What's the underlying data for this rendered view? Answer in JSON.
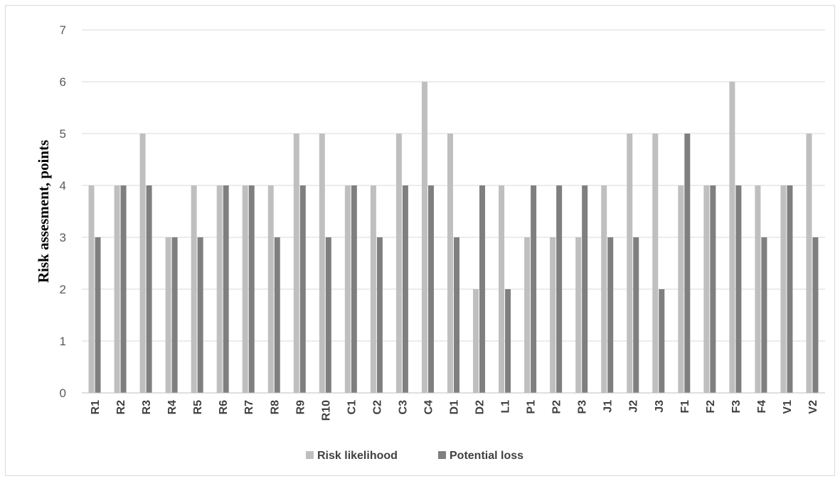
{
  "chart_data": {
    "type": "bar",
    "ylabel": "Risk assesment, points",
    "xlabel": "",
    "ylim": [
      0,
      7
    ],
    "yticks": [
      0,
      1,
      2,
      3,
      4,
      5,
      6,
      7
    ],
    "grid": true,
    "legend_position": "bottom",
    "categories": [
      "R1",
      "R2",
      "R3",
      "R4",
      "R5",
      "R6",
      "R7",
      "R8",
      "R9",
      "R10",
      "C1",
      "C2",
      "C3",
      "C4",
      "D1",
      "D2",
      "L1",
      "P1",
      "P2",
      "P3",
      "J1",
      "J2",
      "J3",
      "F1",
      "F2",
      "F3",
      "F4",
      "V1",
      "V2"
    ],
    "series": [
      {
        "name": "Risk likelihood",
        "color": "#bfbfbf",
        "values": [
          4,
          4,
          5,
          3,
          4,
          4,
          4,
          4,
          5,
          5,
          4,
          4,
          5,
          6,
          5,
          2,
          4,
          3,
          3,
          3,
          4,
          5,
          5,
          4,
          4,
          6,
          4,
          4,
          5
        ]
      },
      {
        "name": "Potential loss",
        "color": "#7f7f7f",
        "values": [
          3,
          4,
          4,
          3,
          3,
          4,
          4,
          3,
          4,
          3,
          4,
          3,
          4,
          4,
          3,
          4,
          2,
          4,
          4,
          4,
          3,
          3,
          2,
          5,
          4,
          4,
          3,
          4,
          3
        ]
      }
    ]
  }
}
